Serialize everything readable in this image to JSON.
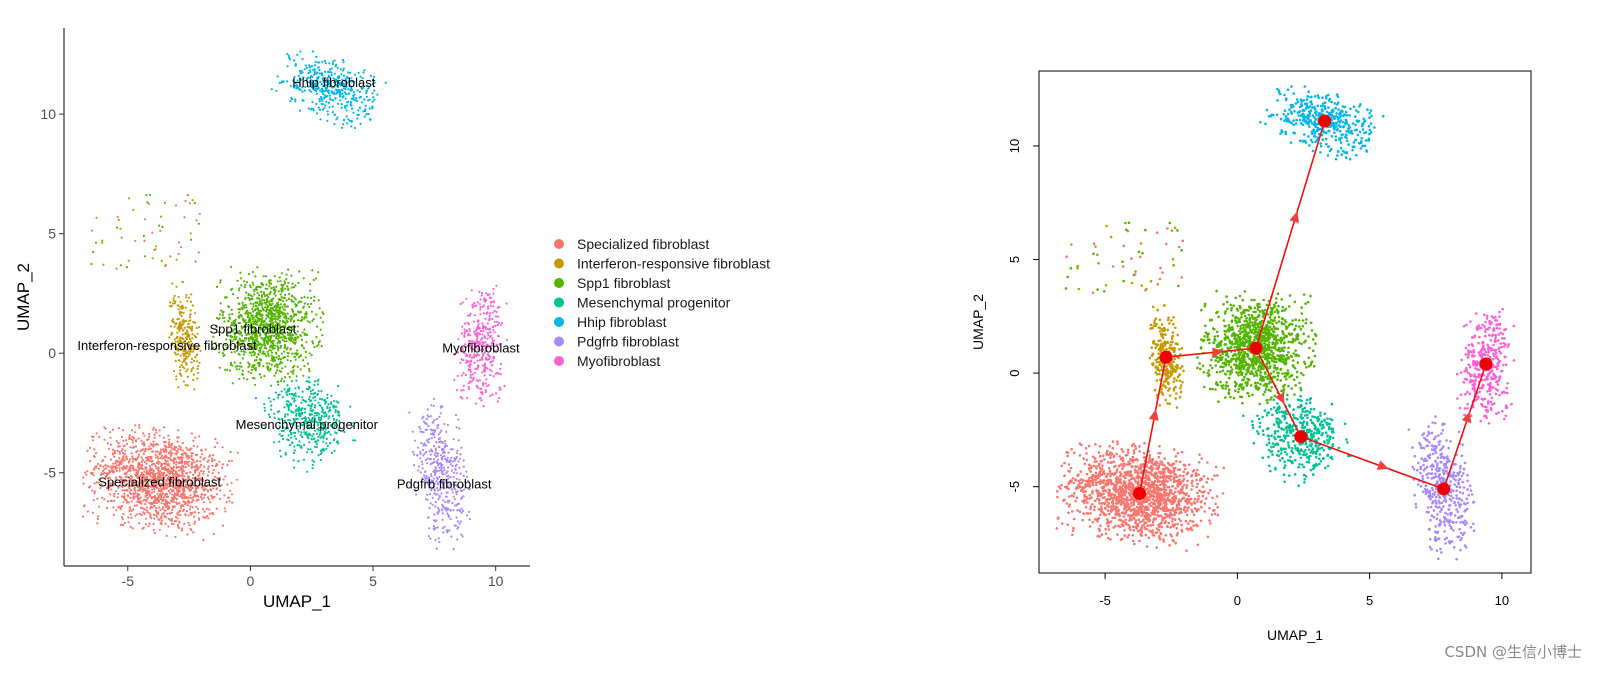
{
  "chart_data": [
    {
      "type": "scatter",
      "title": "",
      "xlabel": "UMAP_1",
      "ylabel": "UMAP_2",
      "xlim": [
        -7.6,
        11.4
      ],
      "ylim": [
        -8.9,
        13.6
      ],
      "xticks": [
        -5,
        0,
        5,
        10
      ],
      "yticks": [
        -5,
        0,
        5,
        10
      ],
      "series": [
        {
          "name": "Specialized fibroblast",
          "color": "#F8766D",
          "center": [
            -3.7,
            -5.3
          ],
          "label": "Specialized fibroblast",
          "label_pos": [
            -3.7,
            -5.4
          ]
        },
        {
          "name": "Interferon-responsive  fibroblast",
          "color": "#C49A00",
          "center": [
            -2.7,
            0.7
          ],
          "label": "Interferon-responsive  fibroblast",
          "label_pos": [
            -3.4,
            0.3
          ]
        },
        {
          "name": "Spp1 fibroblast",
          "color": "#53B400",
          "center": [
            0.7,
            1.1
          ],
          "label": "Spp1 fibroblast",
          "label_pos": [
            0.1,
            1.0
          ]
        },
        {
          "name": "Mesenchymal progenitor",
          "color": "#00C094",
          "center": [
            2.4,
            -2.8
          ],
          "label": "Mesenchymal progenitor",
          "label_pos": [
            2.3,
            -3.0
          ]
        },
        {
          "name": "Hhip fibroblast",
          "color": "#00B6EB",
          "center": [
            3.3,
            11.1
          ],
          "label": "Hhip fibroblast",
          "label_pos": [
            3.4,
            11.3
          ]
        },
        {
          "name": "Pdgfrb fibroblast",
          "color": "#A58AFF",
          "center": [
            7.8,
            -5.1
          ],
          "label": "Pdgfrb fibroblast",
          "label_pos": [
            7.9,
            -5.5
          ]
        },
        {
          "name": "Myofibroblast",
          "color": "#FB61D7",
          "center": [
            9.4,
            0.4
          ],
          "label": "Myofibroblast",
          "label_pos": [
            9.4,
            0.2
          ]
        }
      ]
    },
    {
      "type": "scatter",
      "title": "",
      "xlabel": "UMAP_1",
      "ylabel": "UMAP_2",
      "xlim": [
        -7.5,
        11.1
      ],
      "ylim": [
        -8.8,
        13.3
      ],
      "xticks": [
        -5,
        0,
        5,
        10
      ],
      "yticks": [
        -5,
        0,
        5,
        10
      ],
      "trajectory_nodes": [
        [
          -3.7,
          -5.3
        ],
        [
          -2.7,
          0.7
        ],
        [
          0.7,
          1.1
        ],
        [
          2.4,
          -2.8
        ],
        [
          3.3,
          11.1
        ],
        [
          7.8,
          -5.1
        ],
        [
          9.4,
          0.4
        ]
      ],
      "trajectory_edges": [
        [
          0,
          1
        ],
        [
          1,
          2
        ],
        [
          2,
          4
        ],
        [
          2,
          3
        ],
        [
          3,
          5
        ],
        [
          5,
          6
        ]
      ]
    }
  ],
  "legend": {
    "items": [
      {
        "label": "Specialized fibroblast",
        "color": "#F8766D"
      },
      {
        "label": "Interferon-responsive  fibroblast",
        "color": "#C49A00"
      },
      {
        "label": "Spp1 fibroblast",
        "color": "#53B400"
      },
      {
        "label": "Mesenchymal progenitor",
        "color": "#00C094"
      },
      {
        "label": "Hhip fibroblast",
        "color": "#00B6EB"
      },
      {
        "label": "Pdgfrb fibroblast",
        "color": "#A58AFF"
      },
      {
        "label": "Myofibroblast",
        "color": "#FB61D7"
      }
    ]
  },
  "watermark": "CSDN @生信小博士"
}
